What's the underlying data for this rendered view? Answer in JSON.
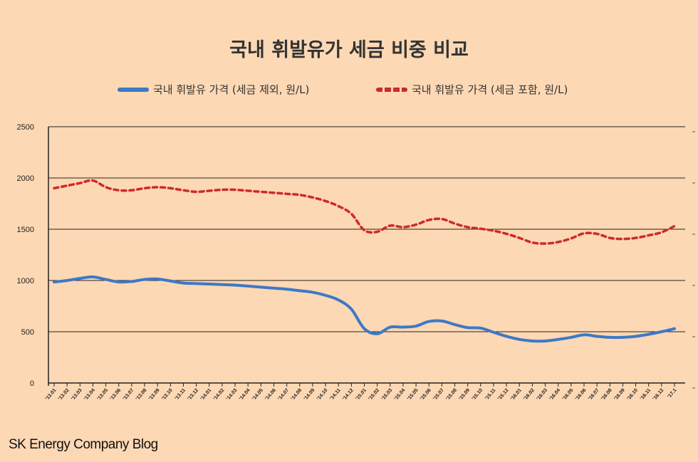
{
  "chart_data": {
    "type": "line",
    "title": "국내 휘발유가 세금 비중 비교",
    "xlabel": "",
    "ylabel": "",
    "ylim": [
      0,
      2500
    ],
    "yticks": [
      0,
      500,
      1000,
      1500,
      2000,
      2500
    ],
    "grid": "horizontal",
    "legend_position": "top",
    "categories": [
      "'13.01",
      "'13.02",
      "'13.03",
      "'13.04",
      "'13.05",
      "'13.06",
      "'13.07",
      "'13.08",
      "'13.09",
      "'13.10",
      "'13.11",
      "'13.12",
      "'14.01",
      "'14.02",
      "'14.03",
      "'14.04",
      "'14.05",
      "'14.06",
      "'14.07",
      "'14.08",
      "'14.09",
      "'14.10",
      "'14.11",
      "'14.12",
      "'15.01",
      "'15.02",
      "'15.03",
      "'15.04",
      "'15.05",
      "'15.06",
      "'15.07",
      "'15.08",
      "'15.09",
      "'15.10",
      "'15.11",
      "'15.12",
      "'16.01",
      "'16.02",
      "'16.03",
      "'16.04",
      "'16.05",
      "'16.06",
      "'16.07",
      "'16.08",
      "'16.09",
      "'16.10",
      "'16.11",
      "'16.12",
      "'17.1"
    ],
    "series": [
      {
        "name": "국내 휘발유 가격 (세금 제외, 원/L)",
        "color": "#3d78c6",
        "style": "solid",
        "values": [
          985,
          1000,
          1020,
          1035,
          1010,
          985,
          990,
          1010,
          1015,
          995,
          975,
          970,
          965,
          960,
          955,
          945,
          935,
          925,
          915,
          900,
          885,
          855,
          810,
          720,
          530,
          480,
          545,
          545,
          555,
          600,
          605,
          570,
          540,
          535,
          495,
          455,
          425,
          410,
          410,
          425,
          445,
          470,
          455,
          445,
          445,
          455,
          475,
          500,
          530
        ]
      },
      {
        "name": "국내 휘발유 가격 (세금 포함, 원/L)",
        "color": "#cc2b2b",
        "style": "dashed",
        "values": [
          1900,
          1925,
          1950,
          1975,
          1910,
          1880,
          1880,
          1900,
          1910,
          1900,
          1880,
          1865,
          1875,
          1885,
          1885,
          1875,
          1865,
          1855,
          1845,
          1835,
          1810,
          1775,
          1725,
          1650,
          1490,
          1475,
          1535,
          1520,
          1545,
          1590,
          1600,
          1555,
          1520,
          1505,
          1485,
          1455,
          1415,
          1370,
          1360,
          1375,
          1410,
          1460,
          1455,
          1415,
          1405,
          1415,
          1440,
          1470,
          1530
        ]
      }
    ]
  },
  "footer": "SK Energy Company Blog"
}
